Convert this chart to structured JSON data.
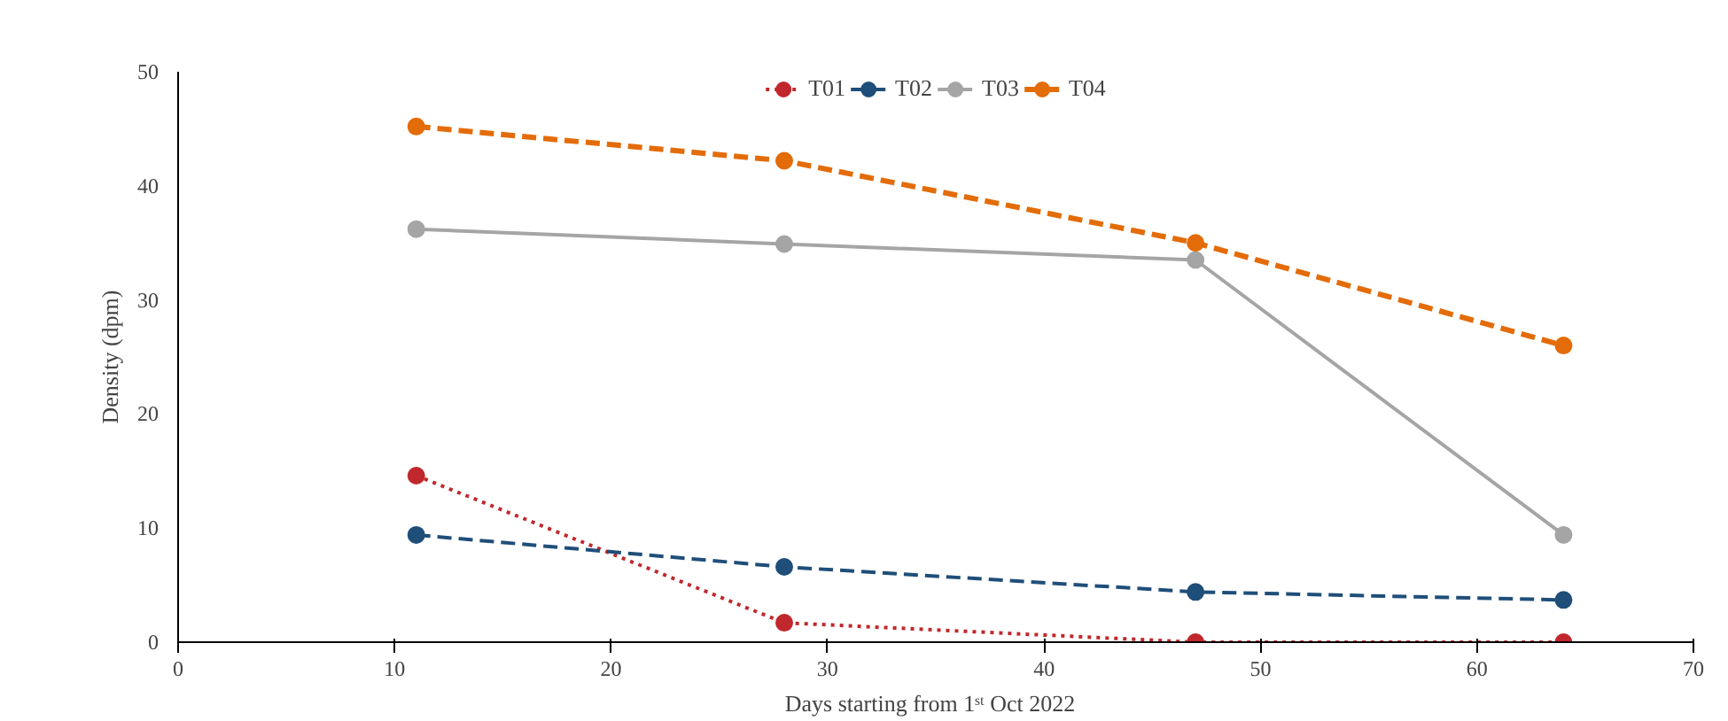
{
  "chart_data": {
    "type": "line",
    "xlabel": "Days starting  from  1ˢᵗ Oct 2022",
    "ylabel": "Density (dpm)",
    "x": [
      11,
      28,
      47,
      64
    ],
    "series": [
      {
        "name": "T01",
        "color": "#c0282d",
        "values": [
          14.6,
          1.7,
          0,
          0
        ],
        "line_style": "dotted"
      },
      {
        "name": "T02",
        "color": "#1f4e79",
        "values": [
          9.4,
          6.6,
          4.4,
          3.7
        ],
        "line_style": "dashed"
      },
      {
        "name": "T03",
        "color": "#a5a5a5",
        "values": [
          36.2,
          34.9,
          33.5,
          9.4
        ],
        "line_style": "solid"
      },
      {
        "name": "T04",
        "color": "#e36c09",
        "values": [
          45.2,
          42.2,
          35,
          26
        ],
        "line_style": "dashed"
      }
    ],
    "xlim": [
      0,
      70
    ],
    "xticks": [
      0,
      10,
      20,
      30,
      40,
      50,
      60,
      70
    ],
    "ylim": [
      0,
      50
    ],
    "yticks": [
      0,
      10,
      20,
      30,
      40,
      50
    ],
    "grid": false,
    "legend": "top",
    "marker": "circle"
  }
}
